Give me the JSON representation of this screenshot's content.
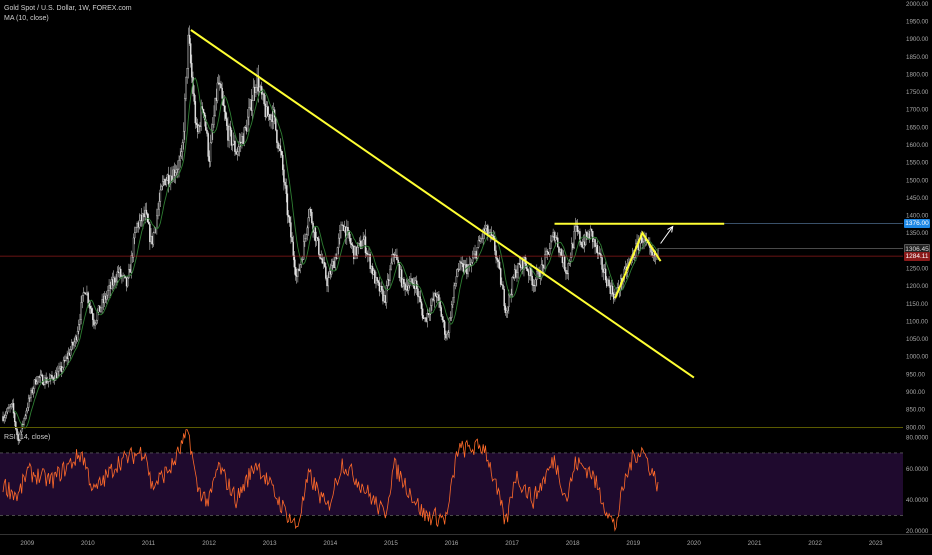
{
  "header": {
    "symbol_line": "Gold Spot / U.S. Dollar, 1W, FOREX.com",
    "ma_line": "MA (10, close)",
    "rsi_line": "RSI (14, close)"
  },
  "price_tags": {
    "resistance": "1376.00",
    "ma_value": "1306.45",
    "last_price": "1284.11"
  },
  "colors": {
    "background": "#000000",
    "candle": "#e6e6e6",
    "ma": "#2e7d32",
    "trendline": "#ffff33",
    "rsi": "#ff6a2a",
    "rsi_band": "#1f0a2e",
    "last_price": "#8b1a1a",
    "resistance_tag": "#1e88e5",
    "axis_text": "#a8a8a8"
  },
  "chart_data": [
    {
      "type": "candlestick",
      "title": "Gold Spot / U.S. Dollar, 1W, FOREX.com",
      "indicator": "MA (10, close)",
      "x_ticks": [
        "2009",
        "2010",
        "2011",
        "2012",
        "2013",
        "2014",
        "2015",
        "2016",
        "2017",
        "2018",
        "2019",
        "2020",
        "2021",
        "2022",
        "2023"
      ],
      "y_ticks": [
        800,
        850,
        900,
        950,
        1000,
        1050,
        1100,
        1150,
        1200,
        1250,
        1300,
        1350,
        1400,
        1450,
        1500,
        1550,
        1600,
        1650,
        1700,
        1750,
        1800,
        1850,
        1900,
        1950,
        2000
      ],
      "y_tick_labels": [
        "800.00",
        "850.00",
        "900.00",
        "950.00",
        "1000.00",
        "1050.00",
        "1100.00",
        "1150.00",
        "1200.00",
        "1250.00",
        "1300.00",
        "1350.00",
        "1400.00",
        "1450.00",
        "1500.00",
        "1550.00",
        "1600.00",
        "1650.00",
        "1700.00",
        "1750.00",
        "1800.00",
        "1850.00",
        "1900.00",
        "1950.00",
        "2000.00"
      ],
      "ylim": [
        800,
        2010
      ],
      "xlim": [
        2008.55,
        2023.45
      ],
      "price_path": [
        [
          2008.6,
          830
        ],
        [
          2008.75,
          860
        ],
        [
          2008.85,
          760
        ],
        [
          2009.0,
          860
        ],
        [
          2009.15,
          940
        ],
        [
          2009.35,
          930
        ],
        [
          2009.55,
          960
        ],
        [
          2009.8,
          1050
        ],
        [
          2009.95,
          1200
        ],
        [
          2010.1,
          1100
        ],
        [
          2010.3,
          1170
        ],
        [
          2010.5,
          1240
        ],
        [
          2010.65,
          1200
        ],
        [
          2010.8,
          1370
        ],
        [
          2010.95,
          1400
        ],
        [
          2011.05,
          1320
        ],
        [
          2011.25,
          1500
        ],
        [
          2011.4,
          1520
        ],
        [
          2011.55,
          1560
        ],
        [
          2011.66,
          1900
        ],
        [
          2011.72,
          1780
        ],
        [
          2011.8,
          1620
        ],
        [
          2011.9,
          1720
        ],
        [
          2012.0,
          1560
        ],
        [
          2012.15,
          1780
        ],
        [
          2012.3,
          1640
        ],
        [
          2012.45,
          1580
        ],
        [
          2012.6,
          1640
        ],
        [
          2012.78,
          1790
        ],
        [
          2012.95,
          1680
        ],
        [
          2013.05,
          1690
        ],
        [
          2013.2,
          1550
        ],
        [
          2013.3,
          1400
        ],
        [
          2013.45,
          1220
        ],
        [
          2013.55,
          1300
        ],
        [
          2013.65,
          1420
        ],
        [
          2013.8,
          1310
        ],
        [
          2013.95,
          1210
        ],
        [
          2014.1,
          1290
        ],
        [
          2014.2,
          1380
        ],
        [
          2014.4,
          1290
        ],
        [
          2014.55,
          1330
        ],
        [
          2014.75,
          1210
        ],
        [
          2014.9,
          1160
        ],
        [
          2015.05,
          1300
        ],
        [
          2015.2,
          1200
        ],
        [
          2015.4,
          1210
        ],
        [
          2015.55,
          1100
        ],
        [
          2015.75,
          1180
        ],
        [
          2015.92,
          1050
        ],
        [
          2016.1,
          1250
        ],
        [
          2016.3,
          1250
        ],
        [
          2016.55,
          1360
        ],
        [
          2016.7,
          1320
        ],
        [
          2016.9,
          1130
        ],
        [
          2017.05,
          1240
        ],
        [
          2017.2,
          1270
        ],
        [
          2017.35,
          1210
        ],
        [
          2017.5,
          1250
        ],
        [
          2017.7,
          1350
        ],
        [
          2017.9,
          1240
        ],
        [
          2018.05,
          1360
        ],
        [
          2018.15,
          1320
        ],
        [
          2018.3,
          1350
        ],
        [
          2018.45,
          1270
        ],
        [
          2018.6,
          1200
        ],
        [
          2018.7,
          1170
        ],
        [
          2018.85,
          1230
        ],
        [
          2019.0,
          1290
        ],
        [
          2019.15,
          1340
        ],
        [
          2019.3,
          1280
        ],
        [
          2019.4,
          1284
        ]
      ],
      "ma_period": 10,
      "last_price": 1284.11,
      "ma_last": 1306.45,
      "resistance": 1376.0,
      "annotations": {
        "descending_trendline": [
          [
            2011.7,
            1925
          ],
          [
            2020.0,
            940
          ]
        ],
        "horizontal_resistance": [
          [
            2017.7,
            1376
          ],
          [
            2020.5,
            1376
          ]
        ],
        "zigzag": [
          [
            2018.7,
            1165
          ],
          [
            2019.15,
            1350
          ],
          [
            2019.45,
            1270
          ]
        ],
        "arrow": [
          [
            2019.45,
            1320
          ],
          [
            2019.65,
            1368
          ]
        ]
      }
    },
    {
      "type": "line",
      "title": "RSI (14, close)",
      "y_ticks": [
        20,
        40,
        60,
        80
      ],
      "y_tick_labels": [
        "20.0000",
        "40.0000",
        "60.0000",
        "80.0000"
      ],
      "ylim": [
        18,
        86
      ],
      "band": [
        30,
        70
      ],
      "rsi_path": [
        [
          2008.6,
          50
        ],
        [
          2008.85,
          42
        ],
        [
          2009.0,
          58
        ],
        [
          2009.4,
          52
        ],
        [
          2009.9,
          70
        ],
        [
          2010.1,
          45
        ],
        [
          2010.5,
          64
        ],
        [
          2010.95,
          72
        ],
        [
          2011.05,
          48
        ],
        [
          2011.4,
          62
        ],
        [
          2011.66,
          84
        ],
        [
          2011.8,
          48
        ],
        [
          2012.0,
          38
        ],
        [
          2012.15,
          62
        ],
        [
          2012.45,
          40
        ],
        [
          2012.78,
          64
        ],
        [
          2013.2,
          36
        ],
        [
          2013.45,
          22
        ],
        [
          2013.65,
          56
        ],
        [
          2013.95,
          34
        ],
        [
          2014.2,
          64
        ],
        [
          2014.55,
          48
        ],
        [
          2014.9,
          30
        ],
        [
          2015.05,
          62
        ],
        [
          2015.55,
          30
        ],
        [
          2015.92,
          28
        ],
        [
          2016.1,
          72
        ],
        [
          2016.55,
          74
        ],
        [
          2016.9,
          24
        ],
        [
          2017.05,
          56
        ],
        [
          2017.35,
          40
        ],
        [
          2017.7,
          66
        ],
        [
          2017.9,
          40
        ],
        [
          2018.05,
          64
        ],
        [
          2018.3,
          58
        ],
        [
          2018.6,
          30
        ],
        [
          2018.7,
          22
        ],
        [
          2018.85,
          50
        ],
        [
          2019.0,
          68
        ],
        [
          2019.15,
          72
        ],
        [
          2019.4,
          50
        ]
      ]
    }
  ]
}
